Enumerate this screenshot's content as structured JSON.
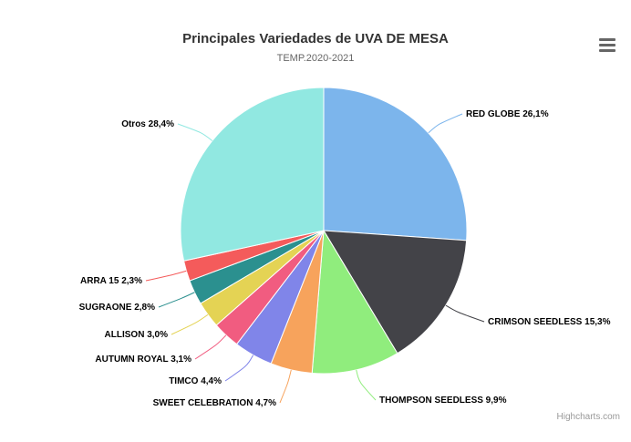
{
  "chart": {
    "title": "Principales Variedades de UVA DE MESA",
    "subtitle": "TEMP.2020-2021",
    "credits": "Highcharts.com",
    "menu_icon": "hamburger-menu-icon"
  },
  "chart_data": {
    "type": "pie",
    "title": "Principales Variedades de UVA DE MESA",
    "subtitle": "TEMP.2020-2021",
    "start_angle": 0,
    "slices": [
      {
        "name": "RED GLOBE",
        "value": 26.1,
        "label": "RED GLOBE 26,1%",
        "color": "#7cb5ec"
      },
      {
        "name": "CRIMSON SEEDLESS",
        "value": 15.3,
        "label": "CRIMSON SEEDLESS 15,3%",
        "color": "#434348"
      },
      {
        "name": "THOMPSON SEEDLESS",
        "value": 9.9,
        "label": "THOMPSON SEEDLESS 9,9%",
        "color": "#90ed7d"
      },
      {
        "name": "SWEET CELEBRATION",
        "value": 4.7,
        "label": "SWEET CELEBRATION 4,7%",
        "color": "#f7a35c"
      },
      {
        "name": "TIMCO",
        "value": 4.4,
        "label": "TIMCO 4,4%",
        "color": "#8085e9"
      },
      {
        "name": "AUTUMN ROYAL",
        "value": 3.1,
        "label": "AUTUMN ROYAL 3,1%",
        "color": "#f15c80"
      },
      {
        "name": "ALLISON",
        "value": 3.0,
        "label": "ALLISON 3,0%",
        "color": "#e4d354"
      },
      {
        "name": "SUGRAONE",
        "value": 2.8,
        "label": "SUGRAONE 2,8%",
        "color": "#2b908f"
      },
      {
        "name": "ARRA 15",
        "value": 2.3,
        "label": "ARRA 15 2,3%",
        "color": "#f45b5b"
      },
      {
        "name": "Otros",
        "value": 28.4,
        "label": "Otros 28,4%",
        "color": "#91e8e1"
      }
    ]
  }
}
